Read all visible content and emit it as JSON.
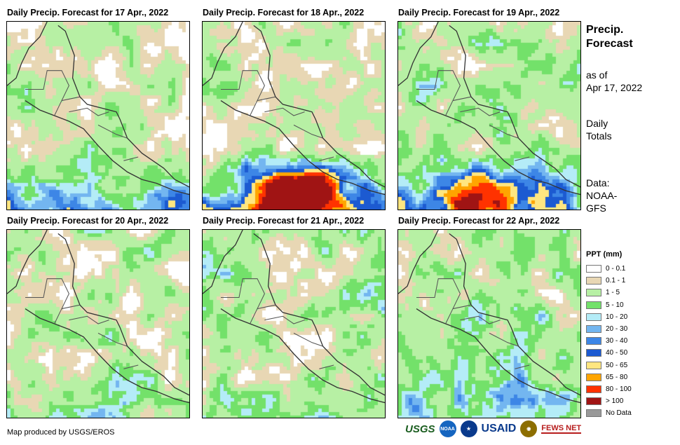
{
  "panels": [
    {
      "title": "Daily Precip. Forecast for 17 Apr., 2022",
      "seed": 17,
      "heavy": 0.0,
      "storm": [
        0.45,
        0.92
      ],
      "wetScale": 1.0,
      "greenBias": 0.45
    },
    {
      "title": "Daily Precip. Forecast for 18 Apr., 2022",
      "seed": 18,
      "heavy": 1.0,
      "storm": [
        0.52,
        0.9
      ],
      "wetScale": 1.0,
      "greenBias": 0.35
    },
    {
      "title": "Daily Precip. Forecast for 19 Apr., 2022",
      "seed": 19,
      "heavy": 0.6,
      "storm": [
        0.48,
        0.93
      ],
      "wetScale": 0.9,
      "greenBias": 0.6
    },
    {
      "title": "Daily Precip. Forecast for 20 Apr., 2022",
      "seed": 20,
      "heavy": 0.0,
      "storm": [
        0.5,
        0.95
      ],
      "wetScale": 0.3,
      "greenBias": 0.55
    },
    {
      "title": "Daily Precip. Forecast for 21 Apr., 2022",
      "seed": 21,
      "heavy": 0.0,
      "storm": [
        0.5,
        0.95
      ],
      "wetScale": 0.3,
      "greenBias": 0.6
    },
    {
      "title": "Daily Precip. Forecast for 22 Apr., 2022",
      "seed": 22,
      "heavy": 0.0,
      "storm": [
        0.5,
        0.95
      ],
      "wetScale": 0.45,
      "greenBias": 0.75
    }
  ],
  "side": {
    "title_line1": "Precip.",
    "title_line2": "Forecast",
    "asof_line1": "as of",
    "asof_line2": "Apr 17, 2022",
    "daily_line1": "Daily",
    "daily_line2": "Totals",
    "data_line1": "Data:",
    "data_line2": "NOAA-",
    "data_line3": "GFS"
  },
  "legend": {
    "title": "PPT (mm)",
    "items": [
      {
        "label": "0 - 0.1",
        "color": "#ffffff"
      },
      {
        "label": "0.1 - 1",
        "color": "#e8d7b4"
      },
      {
        "label": "1 - 5",
        "color": "#b7f0a4"
      },
      {
        "label": "5 - 10",
        "color": "#73e16a"
      },
      {
        "label": "10 - 20",
        "color": "#b4ecf7"
      },
      {
        "label": "20 - 30",
        "color": "#73b6f0"
      },
      {
        "label": "30 - 40",
        "color": "#3d86e6"
      },
      {
        "label": "40 - 50",
        "color": "#1c5ad1"
      },
      {
        "label": "50 - 65",
        "color": "#ffe680"
      },
      {
        "label": "65 - 80",
        "color": "#ffa500"
      },
      {
        "label": "80 - 100",
        "color": "#ff3200"
      },
      {
        "label": "> 100",
        "color": "#a01414"
      },
      {
        "label": "No Data",
        "color": "#999999"
      }
    ]
  },
  "credit": "Map produced by USGS/EROS",
  "logos": {
    "usgs": "USGS",
    "usaid": "USAID",
    "fews": "FEWS NET"
  }
}
